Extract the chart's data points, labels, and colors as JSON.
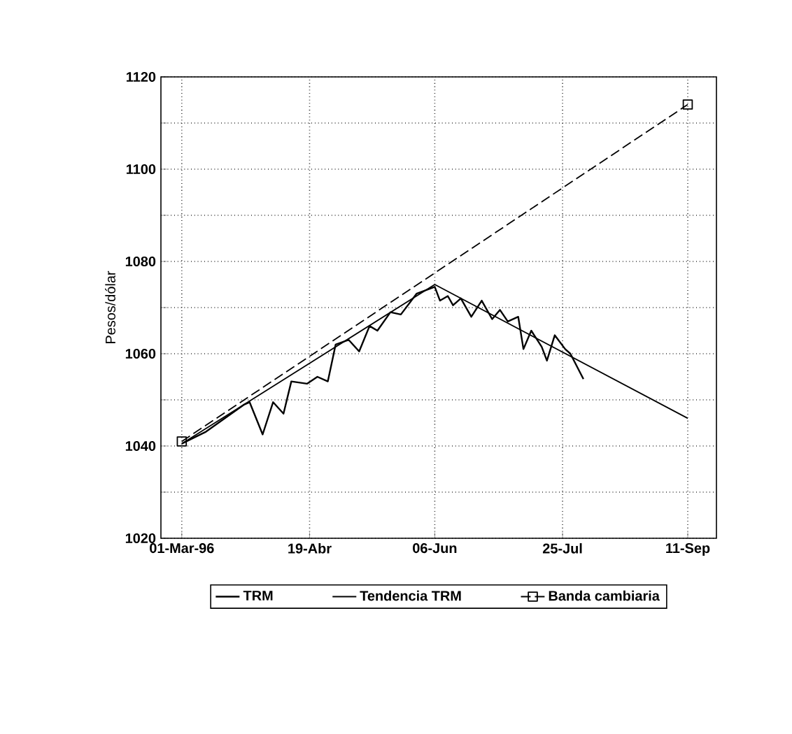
{
  "chart_data": {
    "type": "line",
    "ylabel": "Pesos/dólar",
    "xlim": [
      "1996-02-22",
      "1996-09-22"
    ],
    "ylim": [
      1020,
      1120
    ],
    "xticks": [
      {
        "value": "1996-03-01",
        "label": "01-Mar-96"
      },
      {
        "value": "1996-04-19",
        "label": "19-Abr"
      },
      {
        "value": "1996-06-06",
        "label": "06-Jun"
      },
      {
        "value": "1996-07-25",
        "label": "25-Jul"
      },
      {
        "value": "1996-09-11",
        "label": "11-Sep"
      }
    ],
    "yticks": [
      1020,
      {
        "value": 1030,
        "label": null
      },
      1040,
      {
        "value": 1050,
        "label": null
      },
      1060,
      {
        "value": 1070,
        "label": null
      },
      1080,
      {
        "value": 1090,
        "label": null
      },
      1100,
      {
        "value": 1110,
        "label": null
      },
      1120
    ],
    "grid": true,
    "legend": "bottom",
    "series": [
      {
        "name": "TRM",
        "color": "#000000",
        "marker": "none",
        "line_style": "solid",
        "x": [
          "1996-03-01",
          "1996-03-10",
          "1996-03-25",
          "1996-03-27",
          "1996-04-01",
          "1996-04-05",
          "1996-04-09",
          "1996-04-12",
          "1996-04-18",
          "1996-04-22",
          "1996-04-26",
          "1996-04-29",
          "1996-05-04",
          "1996-05-08",
          "1996-05-12",
          "1996-05-15",
          "1996-05-20",
          "1996-05-24",
          "1996-05-30",
          "1996-06-06",
          "1996-06-08",
          "1996-06-11",
          "1996-06-13",
          "1996-06-16",
          "1996-06-20",
          "1996-06-24",
          "1996-06-28",
          "1996-07-01",
          "1996-07-04",
          "1996-07-08",
          "1996-07-10",
          "1996-07-13",
          "1996-07-17",
          "1996-07-19",
          "1996-07-22",
          "1996-07-26",
          "1996-07-28",
          "1996-08-02"
        ],
        "values": [
          1040.5,
          1043,
          1049,
          1049.5,
          1042.5,
          1049.5,
          1047,
          1054,
          1053.5,
          1055,
          1054,
          1062,
          1063,
          1060.5,
          1066,
          1065,
          1069,
          1068.5,
          1073,
          1074.5,
          1071.5,
          1072.5,
          1070.5,
          1072,
          1068,
          1071.5,
          1067.5,
          1069.5,
          1067,
          1068,
          1061,
          1065,
          1061.5,
          1058.5,
          1064,
          1061,
          1060,
          1054.5
        ]
      },
      {
        "name": "Tendencia TRM",
        "color": "#000000",
        "marker": "none",
        "line_style": "solid",
        "x": [
          "1996-03-01",
          "1996-06-06",
          "1996-09-11"
        ],
        "values": [
          1040.5,
          1075,
          1046
        ]
      },
      {
        "name": "Banda cambiaria",
        "color": "#000000",
        "marker": "square",
        "line_style": "dashed",
        "x": [
          "1996-03-01",
          "1996-09-11"
        ],
        "values": [
          1041,
          1114
        ]
      }
    ]
  }
}
